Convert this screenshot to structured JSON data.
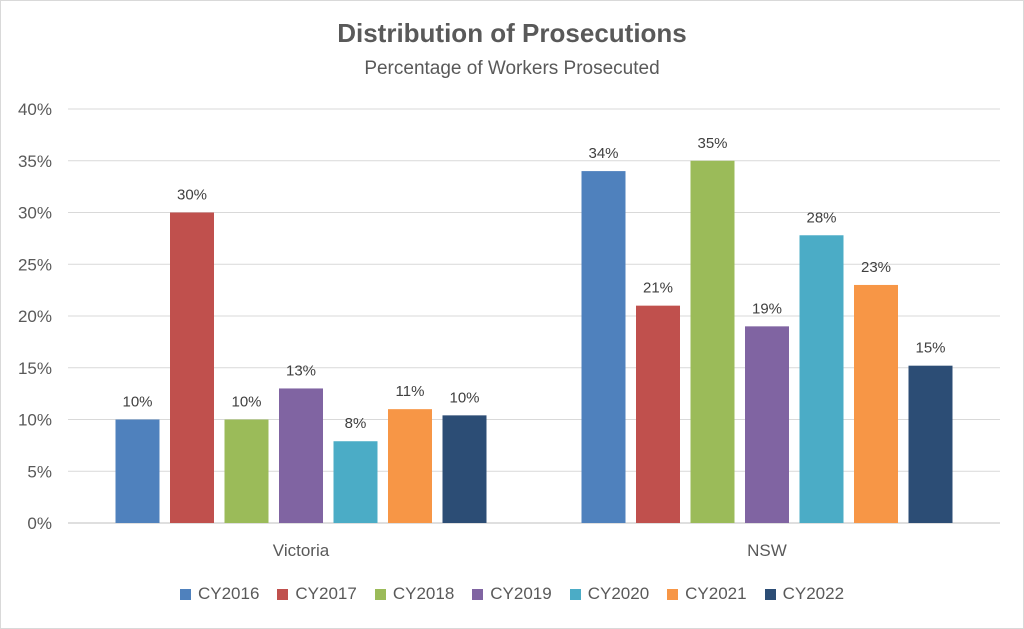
{
  "chart_data": {
    "type": "bar",
    "title": "Distribution of Prosecutions",
    "subtitle": "Percentage of Workers Prosecuted",
    "xlabel": "",
    "ylabel": "",
    "categories": [
      "Victoria",
      "NSW"
    ],
    "ylim": [
      0,
      40
    ],
    "yticks": [
      "0%",
      "5%",
      "10%",
      "15%",
      "20%",
      "25%",
      "30%",
      "35%",
      "40%"
    ],
    "grid": true,
    "legend_position": "bottom",
    "series": [
      {
        "name": "CY2016",
        "color": "#4f81bd",
        "values": [
          10,
          34
        ],
        "labels": [
          "10%",
          "34%"
        ]
      },
      {
        "name": "CY2017",
        "color": "#c0504d",
        "values": [
          30,
          21
        ],
        "labels": [
          "30%",
          "21%"
        ]
      },
      {
        "name": "CY2018",
        "color": "#9bbb59",
        "values": [
          10,
          35
        ],
        "labels": [
          "10%",
          "35%"
        ]
      },
      {
        "name": "CY2019",
        "color": "#8064a2",
        "values": [
          13,
          19
        ],
        "labels": [
          "13%",
          "19%"
        ]
      },
      {
        "name": "CY2020",
        "color": "#4bacc6",
        "values": [
          7.9,
          27.8
        ],
        "labels": [
          "8%",
          "28%"
        ]
      },
      {
        "name": "CY2021",
        "color": "#f79646",
        "values": [
          11,
          23
        ],
        "labels": [
          "11%",
          "23%"
        ]
      },
      {
        "name": "CY2022",
        "color": "#2c4d75",
        "values": [
          10.4,
          15.2
        ],
        "labels": [
          "10%",
          "15%"
        ]
      }
    ]
  }
}
